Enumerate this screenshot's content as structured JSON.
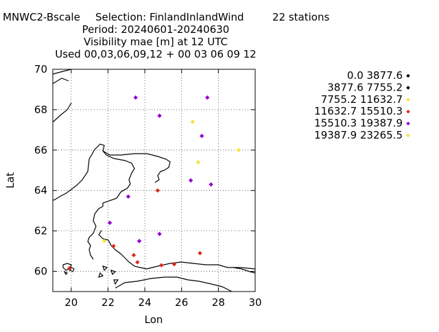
{
  "header": {
    "line1_left": "MNWC2-Bscale",
    "line1_mid": "Selection: FinlandInlandWind",
    "line1_right": "22 stations",
    "line2": "Period: 20240601-20240630",
    "line3": "Visibility mae [m] at  12 UTC",
    "line4": "Used 00,03,06,09,12 + 00 03 06 09 12"
  },
  "chart_data": {
    "type": "scatter",
    "xlabel": "Lon",
    "ylabel": "Lat",
    "xlim": [
      19,
      30
    ],
    "ylim": [
      59,
      70
    ],
    "xticks": [
      "20",
      "22",
      "24",
      "26",
      "28",
      "30"
    ],
    "yticks": [
      "60",
      "62",
      "64",
      "66",
      "68",
      "70"
    ],
    "grid": true,
    "legend_position": "right",
    "series": [
      {
        "name": "0.0 3877.6",
        "color": "#000000",
        "points": []
      },
      {
        "name": "3877.6 7755.2",
        "color": "#000000",
        "points": []
      },
      {
        "name": "7755.2 11632.7",
        "color": "#f0e442",
        "points": [
          [
            26.6,
            67.4
          ],
          [
            29.1,
            66.0
          ],
          [
            26.9,
            65.4
          ],
          [
            21.8,
            61.5
          ]
        ]
      },
      {
        "name": "11632.7 15510.3",
        "color": "#e0281e",
        "points": [
          [
            24.7,
            64.0
          ],
          [
            22.3,
            61.25
          ],
          [
            23.4,
            60.8
          ],
          [
            23.6,
            60.45
          ],
          [
            24.9,
            60.3
          ],
          [
            25.6,
            60.35
          ],
          [
            27.0,
            60.9
          ],
          [
            19.9,
            60.15
          ]
        ]
      },
      {
        "name": "15510.3 19387.9",
        "color": "#9400d3",
        "points": [
          [
            23.5,
            68.6
          ],
          [
            27.4,
            68.6
          ],
          [
            24.8,
            67.7
          ],
          [
            27.1,
            66.7
          ],
          [
            26.5,
            64.5
          ],
          [
            27.6,
            64.3
          ],
          [
            23.1,
            63.7
          ],
          [
            22.1,
            62.4
          ],
          [
            24.8,
            61.85
          ],
          [
            23.7,
            61.5
          ]
        ]
      },
      {
        "name": "19387.9 23265.5",
        "color": "#f0e442",
        "points": []
      }
    ]
  }
}
